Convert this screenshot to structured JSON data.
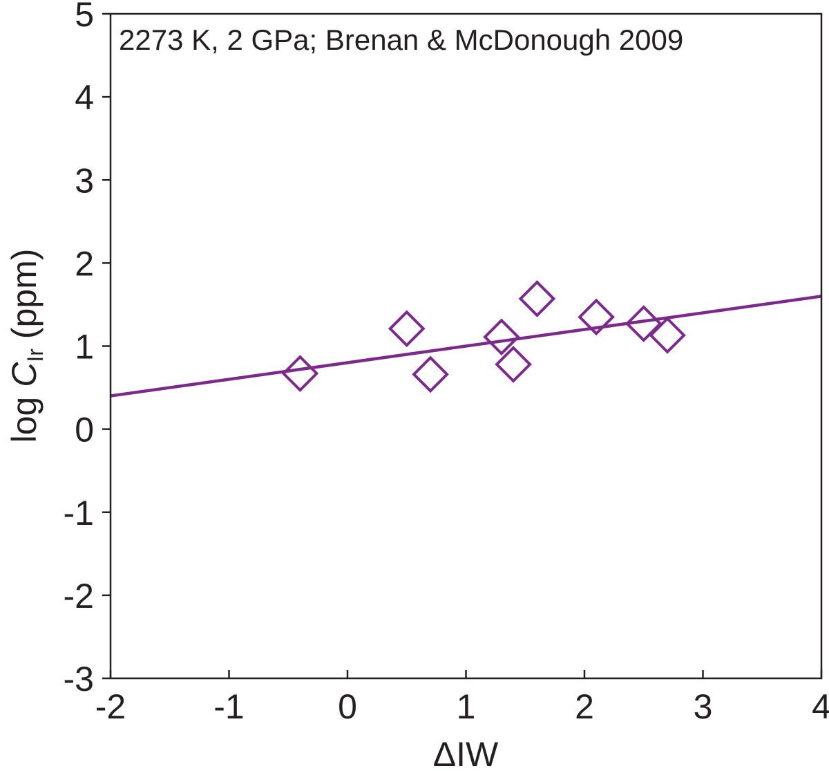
{
  "chart_data": {
    "type": "scatter",
    "annotation": "2273 K, 2 GPa; Brenan & McDonough 2009",
    "xlabel": "ΔIW",
    "ylabel_prefix": "log ",
    "ylabel_var": "C",
    "ylabel_sub": "Ir",
    "ylabel_suffix": " (ppm)",
    "xlim": [
      -2,
      4
    ],
    "ylim": [
      -3,
      5
    ],
    "xticks": [
      -2,
      -1,
      0,
      1,
      2,
      3,
      4
    ],
    "yticks": [
      -3,
      -2,
      -1,
      0,
      1,
      2,
      3,
      4,
      5
    ],
    "grid": false,
    "series": [
      {
        "marker": "open-diamond",
        "color": "#7b2a8c",
        "points": [
          {
            "x": -0.4,
            "y": 0.67
          },
          {
            "x": 0.5,
            "y": 1.21
          },
          {
            "x": 0.7,
            "y": 0.66
          },
          {
            "x": 1.3,
            "y": 1.11
          },
          {
            "x": 1.4,
            "y": 0.78
          },
          {
            "x": 1.6,
            "y": 1.57
          },
          {
            "x": 2.1,
            "y": 1.35
          },
          {
            "x": 2.5,
            "y": 1.27
          },
          {
            "x": 2.7,
            "y": 1.13
          }
        ]
      }
    ],
    "fit_line": {
      "color": "#7b2a8c",
      "points": [
        {
          "x": -2,
          "y": 0.4
        },
        {
          "x": 4,
          "y": 1.6
        }
      ]
    }
  }
}
